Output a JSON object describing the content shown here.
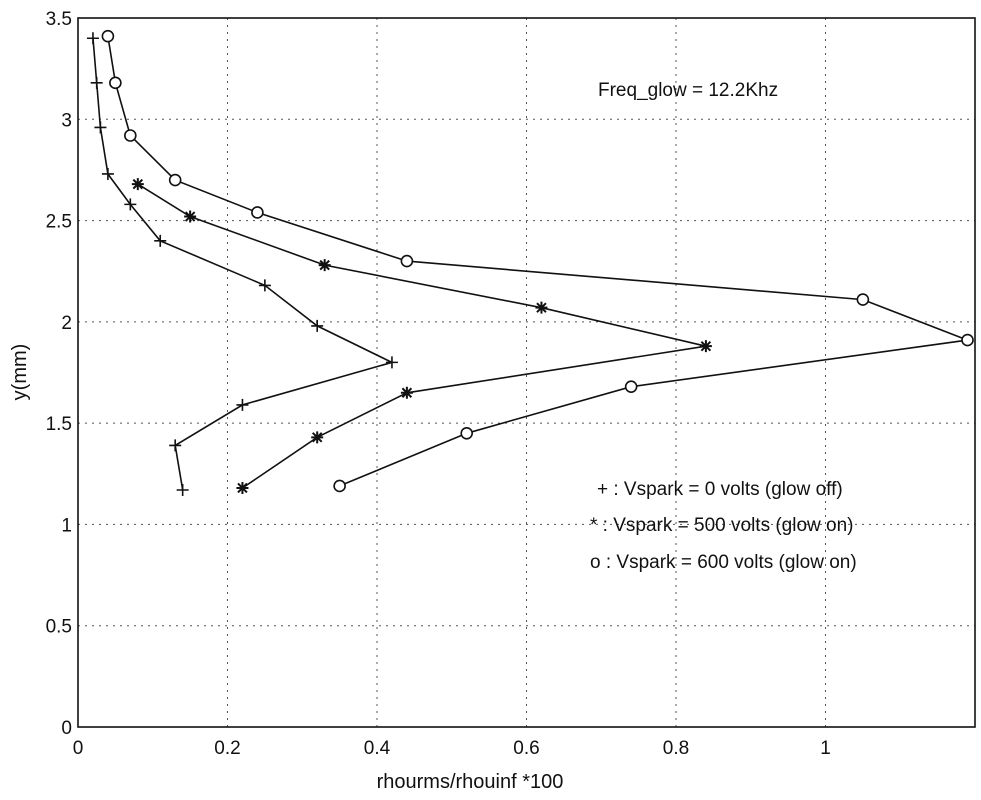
{
  "chart_data": {
    "type": "line",
    "xlabel": "rhourms/rhouinf *100",
    "ylabel": "y(mm)",
    "xlim": [
      0,
      1.2
    ],
    "ylim": [
      0,
      3.5
    ],
    "xticks": [
      "0",
      "0.2",
      "0.4",
      "0.6",
      "0.8",
      "1"
    ],
    "xtick_values": [
      0,
      0.2,
      0.4,
      0.6,
      0.8,
      1.0
    ],
    "yticks": [
      "0",
      "0.5",
      "1",
      "1.5",
      "2",
      "2.5",
      "3",
      "3.5"
    ],
    "ytick_values": [
      0,
      0.5,
      1,
      1.5,
      2,
      2.5,
      3,
      3.5
    ],
    "grid": true,
    "annotation": "Freq_glow = 12.2Khz",
    "legend_text": [
      "+ : Vspark = 0 volts (glow off)",
      "* : Vspark = 500 volts (glow on)",
      "o : Vspark = 600 volts (glow on)"
    ],
    "series": [
      {
        "marker": "plus",
        "points": [
          [
            0.14,
            1.17
          ],
          [
            0.13,
            1.39
          ],
          [
            0.22,
            1.59
          ],
          [
            0.42,
            1.8
          ],
          [
            0.32,
            1.98
          ],
          [
            0.25,
            2.18
          ],
          [
            0.11,
            2.4
          ],
          [
            0.07,
            2.58
          ],
          [
            0.04,
            2.73
          ],
          [
            0.03,
            2.96
          ],
          [
            0.025,
            3.18
          ],
          [
            0.02,
            3.4
          ]
        ]
      },
      {
        "marker": "star",
        "points": [
          [
            0.22,
            1.18
          ],
          [
            0.32,
            1.43
          ],
          [
            0.44,
            1.65
          ],
          [
            0.84,
            1.88
          ],
          [
            0.62,
            2.07
          ],
          [
            0.33,
            2.28
          ],
          [
            0.15,
            2.52
          ],
          [
            0.08,
            2.68
          ]
        ]
      },
      {
        "marker": "circle",
        "points": [
          [
            0.35,
            1.19
          ],
          [
            0.52,
            1.45
          ],
          [
            0.74,
            1.68
          ],
          [
            1.19,
            1.91
          ],
          [
            1.05,
            2.11
          ],
          [
            0.44,
            2.3
          ],
          [
            0.24,
            2.54
          ],
          [
            0.13,
            2.7
          ],
          [
            0.07,
            2.92
          ],
          [
            0.05,
            3.18
          ],
          [
            0.04,
            3.41
          ]
        ]
      }
    ]
  }
}
